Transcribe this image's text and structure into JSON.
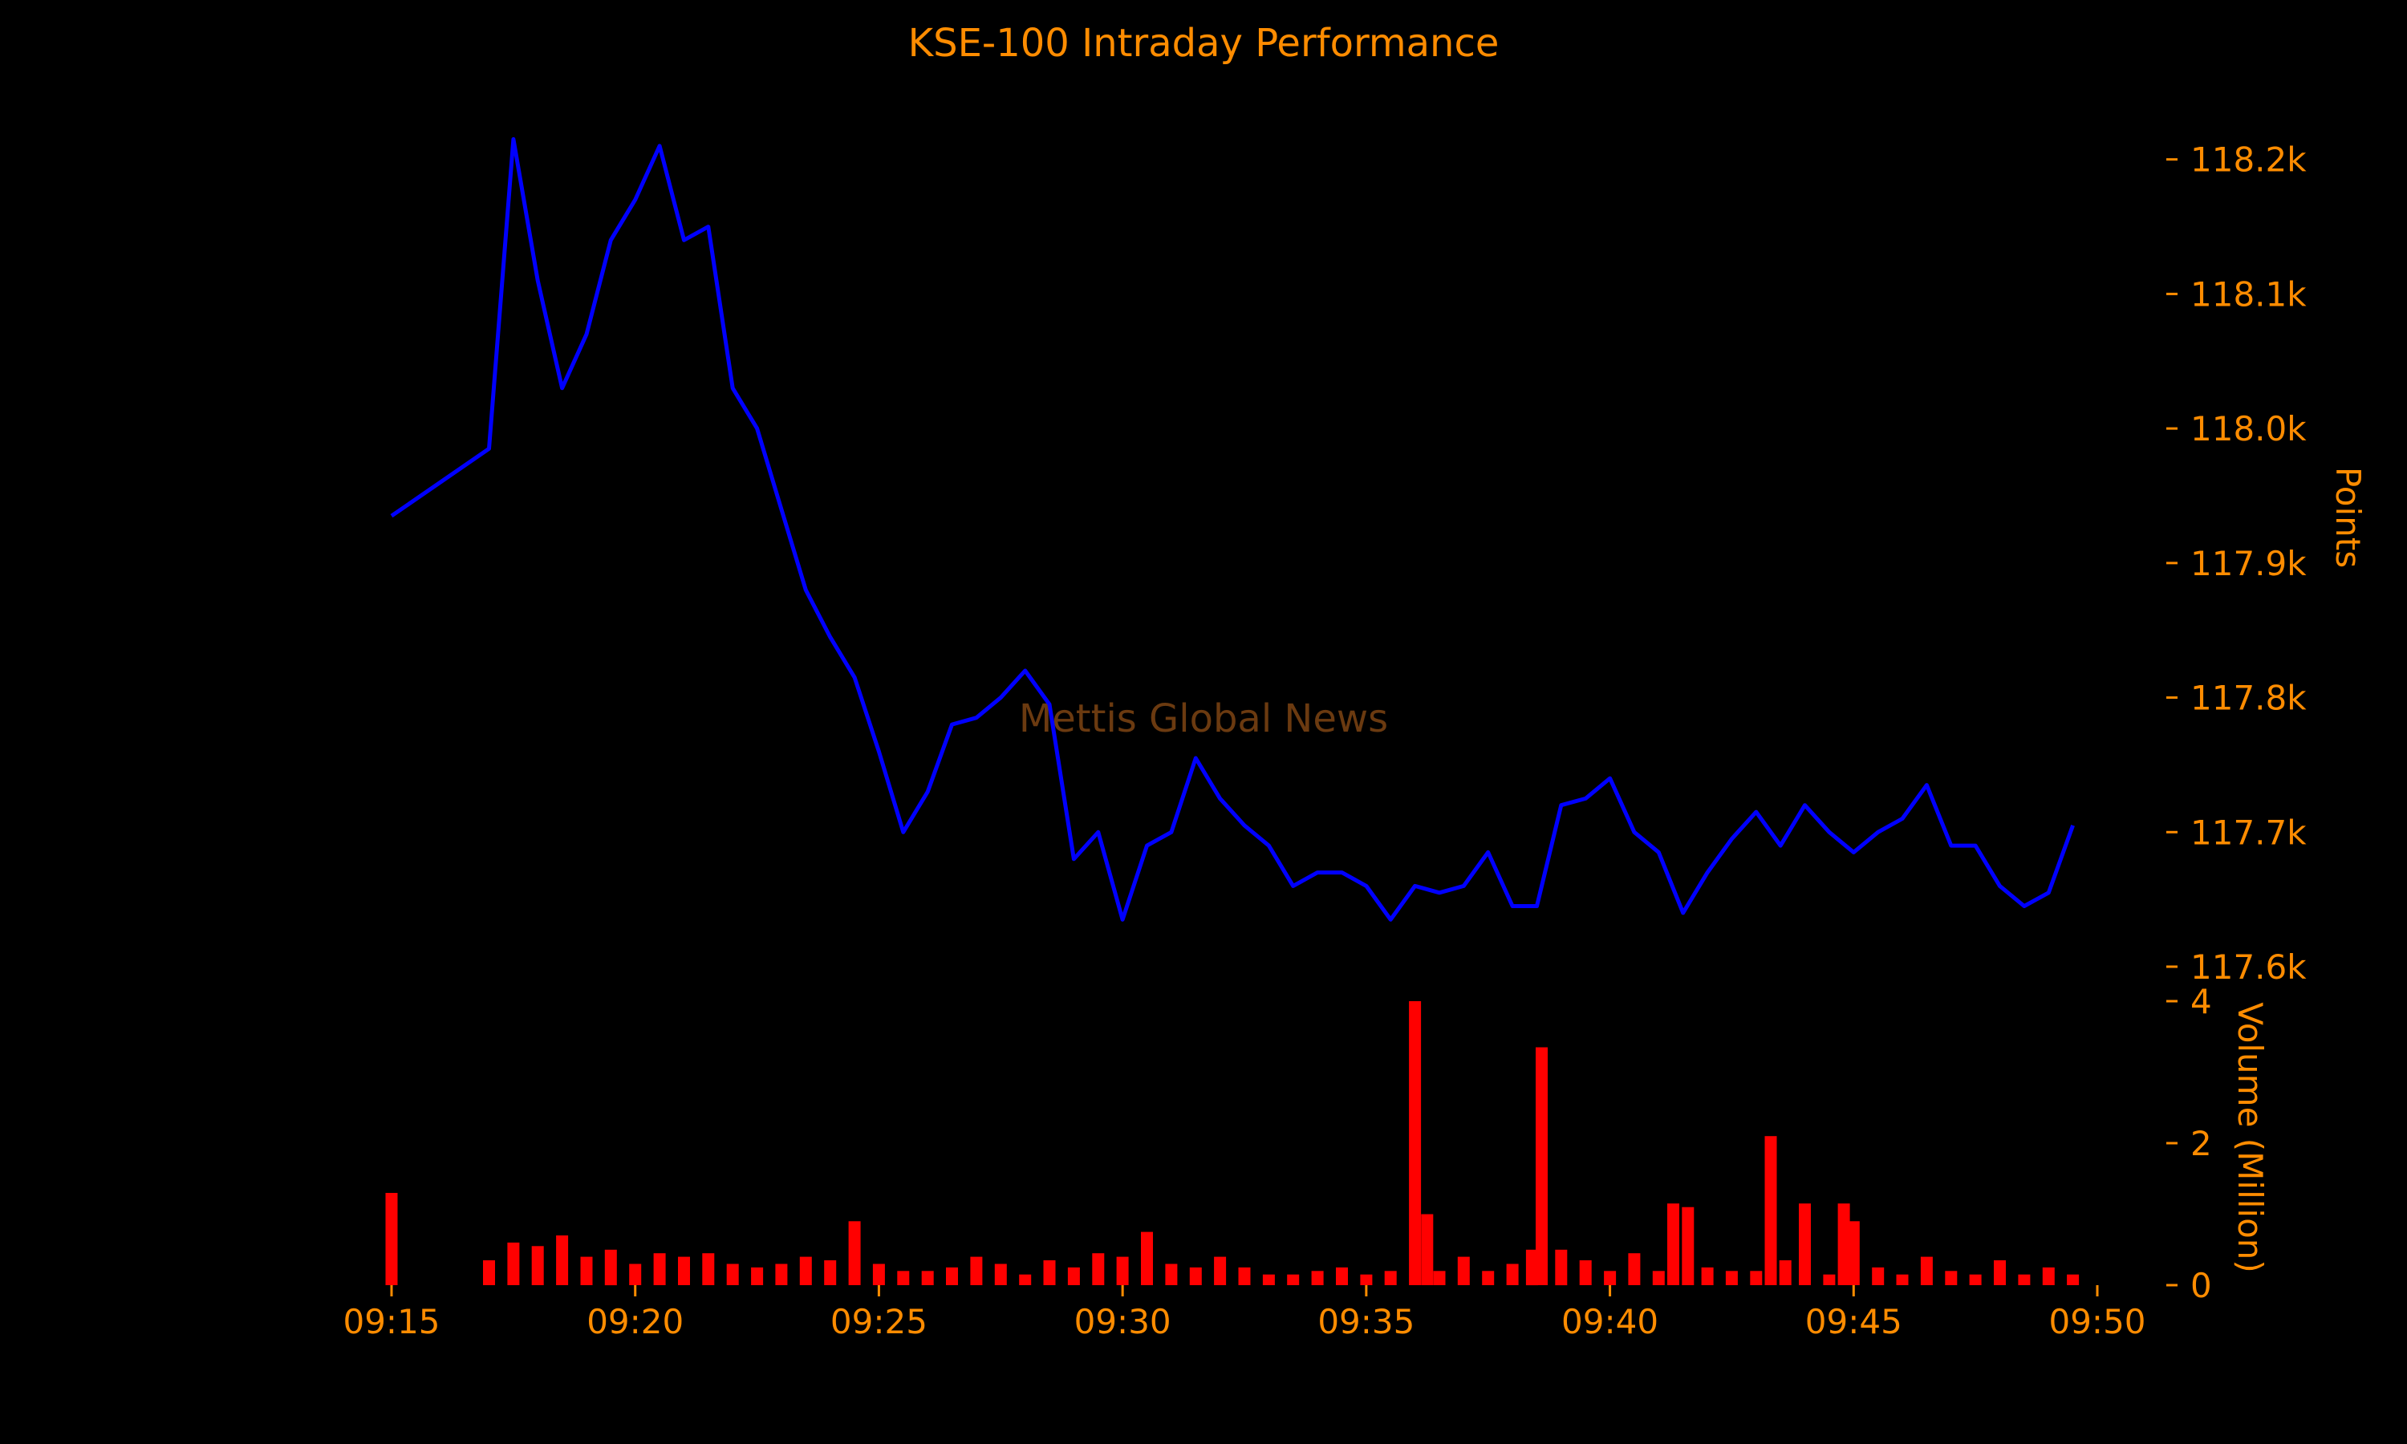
{
  "chart_data": [
    {
      "type": "line",
      "title": "KSE-100 Intraday Performance",
      "ylabel": "Points",
      "y_axis_side": "right",
      "ylim": [
        117600,
        118235
      ],
      "yticks": [
        117600,
        117700,
        117800,
        117900,
        118000,
        118100,
        118200
      ],
      "ytick_labels": [
        "117.6k",
        "117.7k",
        "117.8k",
        "117.9k",
        "118.0k",
        "118.1k",
        "118.2k"
      ],
      "series": [
        {
          "color": "#0000ff",
          "x": [
            "09:15",
            "09:17",
            "09:17.5",
            "09:18",
            "09:18.5",
            "09:19",
            "09:19.5",
            "09:20",
            "09:20.5",
            "09:21",
            "09:21.5",
            "09:22",
            "09:22.5",
            "09:23",
            "09:23.5",
            "09:24",
            "09:24.5",
            "09:25",
            "09:25.5",
            "09:26",
            "09:26.5",
            "09:27",
            "09:27.5",
            "09:28",
            "09:28.5",
            "09:29",
            "09:29.5",
            "09:30",
            "09:30.5",
            "09:31",
            "09:31.5",
            "09:32",
            "09:32.5",
            "09:33",
            "09:33.5",
            "09:34",
            "09:34.5",
            "09:35",
            "09:35.5",
            "09:36",
            "09:36.5",
            "09:37",
            "09:37.5",
            "09:38",
            "09:38.5",
            "09:39",
            "09:39.5",
            "09:40",
            "09:40.5",
            "09:41",
            "09:41.5",
            "09:42",
            "09:42.5",
            "09:43",
            "09:43.5",
            "09:44",
            "09:44.5",
            "09:45",
            "09:45.5",
            "09:46",
            "09:46.5",
            "09:47",
            "09:47.5",
            "09:48",
            "09:48.5",
            "09:49",
            "09:49.5"
          ],
          "y": [
            117935,
            117985,
            118215,
            118110,
            118030,
            118070,
            118140,
            118170,
            118210,
            118140,
            118150,
            118030,
            118000,
            117940,
            117880,
            117845,
            117815,
            117760,
            117700,
            117730,
            117780,
            117785,
            117800,
            117820,
            117795,
            117680,
            117700,
            117635,
            117690,
            117700,
            117755,
            117725,
            117705,
            117690,
            117660,
            117670,
            117670,
            117660,
            117635,
            117660,
            117655,
            117660,
            117685,
            117645,
            117645,
            117720,
            117725,
            117740,
            117700,
            117685,
            117640,
            117670,
            117695,
            117715,
            117690,
            117720,
            117700,
            117685,
            117700,
            117710,
            117735,
            117690,
            117690,
            117660,
            117645,
            117655,
            117705
          ]
        }
      ]
    },
    {
      "type": "bar",
      "ylabel": "Volume (Million)",
      "y_axis_side": "right",
      "ylim": [
        0,
        4
      ],
      "yticks": [
        0,
        2,
        4
      ],
      "ytick_labels": [
        "0",
        "2",
        "4"
      ],
      "x_range": [
        "09:15",
        "09:50"
      ],
      "xtick_labels": [
        "09:15",
        "09:20",
        "09:25",
        "09:30",
        "09:35",
        "09:40",
        "09:45",
        "09:50"
      ],
      "series": [
        {
          "color": "#ff0000",
          "x": [
            "09:15",
            "09:17",
            "09:17.5",
            "09:18",
            "09:18.5",
            "09:19",
            "09:19.5",
            "09:20",
            "09:20.5",
            "09:21",
            "09:21.5",
            "09:22",
            "09:22.5",
            "09:23",
            "09:23.5",
            "09:24",
            "09:24.5",
            "09:25",
            "09:25.5",
            "09:26",
            "09:26.5",
            "09:27",
            "09:27.5",
            "09:28",
            "09:28.5",
            "09:29",
            "09:29.5",
            "09:30",
            "09:30.5",
            "09:31",
            "09:31.5",
            "09:32",
            "09:32.5",
            "09:33",
            "09:33.5",
            "09:34",
            "09:34.5",
            "09:35",
            "09:35.5",
            "09:36",
            "09:36.25",
            "09:36.5",
            "09:37",
            "09:37.5",
            "09:38",
            "09:38.4",
            "09:38.6",
            "09:39",
            "09:39.5",
            "09:40",
            "09:40.5",
            "09:41",
            "09:41.3",
            "09:41.6",
            "09:42",
            "09:42.5",
            "09:43",
            "09:43.3",
            "09:43.6",
            "09:44",
            "09:44.5",
            "09:44.8",
            "09:45",
            "09:45.5",
            "09:46",
            "09:46.5",
            "09:47",
            "09:47.5",
            "09:48",
            "09:48.5",
            "09:49",
            "09:49.5"
          ],
          "values": [
            1.3,
            0.35,
            0.6,
            0.55,
            0.7,
            0.4,
            0.5,
            0.3,
            0.45,
            0.4,
            0.45,
            0.3,
            0.25,
            0.3,
            0.4,
            0.35,
            0.9,
            0.3,
            0.2,
            0.2,
            0.25,
            0.4,
            0.3,
            0.15,
            0.35,
            0.25,
            0.45,
            0.4,
            0.75,
            0.3,
            0.25,
            0.4,
            0.25,
            0.15,
            0.15,
            0.2,
            0.25,
            0.15,
            0.2,
            4.0,
            1.0,
            0.2,
            0.4,
            0.2,
            0.3,
            0.5,
            3.35,
            0.5,
            0.35,
            0.2,
            0.45,
            0.2,
            1.15,
            1.1,
            0.25,
            0.2,
            0.2,
            2.1,
            0.35,
            1.15,
            0.15,
            1.15,
            0.9,
            0.25,
            0.15,
            0.4,
            0.2,
            0.15,
            0.35,
            0.15,
            0.25,
            0.15
          ]
        }
      ]
    }
  ],
  "watermark": "Mettis Global News",
  "colors": {
    "background": "#000000",
    "text": "#ff8c00",
    "line": "#0000ff",
    "bars": "#ff0000",
    "watermark": "#6b3a10"
  }
}
